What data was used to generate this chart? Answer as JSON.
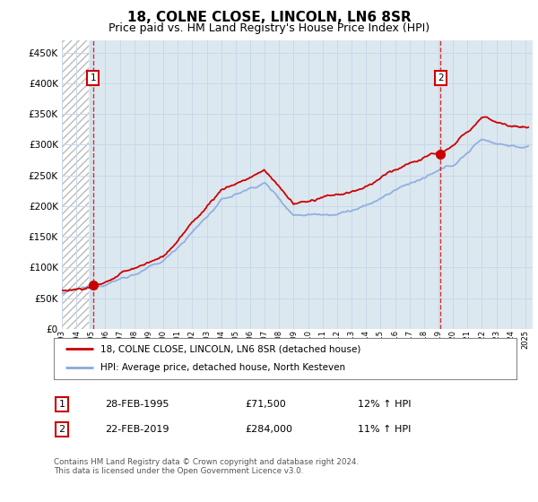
{
  "title": "18, COLNE CLOSE, LINCOLN, LN6 8SR",
  "subtitle": "Price paid vs. HM Land Registry's House Price Index (HPI)",
  "ylabel_ticks": [
    0,
    50000,
    100000,
    150000,
    200000,
    250000,
    300000,
    350000,
    400000,
    450000
  ],
  "ylim": [
    0,
    470000
  ],
  "xlim_start": 1993.0,
  "xlim_end": 2025.5,
  "hatch_end": 1994.83,
  "transaction1_x": 1995.16,
  "transaction1_y": 71500,
  "transaction2_x": 2019.14,
  "transaction2_y": 284000,
  "legend_line1": "18, COLNE CLOSE, LINCOLN, LN6 8SR (detached house)",
  "legend_line2": "HPI: Average price, detached house, North Kesteven",
  "annotation1_label": "1",
  "annotation1_date": "28-FEB-1995",
  "annotation1_price": "£71,500",
  "annotation1_hpi": "12% ↑ HPI",
  "annotation2_label": "2",
  "annotation2_date": "22-FEB-2019",
  "annotation2_price": "£284,000",
  "annotation2_hpi": "11% ↑ HPI",
  "footnote": "Contains HM Land Registry data © Crown copyright and database right 2024.\nThis data is licensed under the Open Government Licence v3.0.",
  "red_line_color": "#cc0000",
  "blue_line_color": "#88aadd",
  "hatch_color": "#bbbbbb",
  "grid_color": "#c8d8e8",
  "bg_plot_color": "#dce8f0",
  "marker_box_color": "#cc0000",
  "title_fontsize": 11,
  "subtitle_fontsize": 9
}
